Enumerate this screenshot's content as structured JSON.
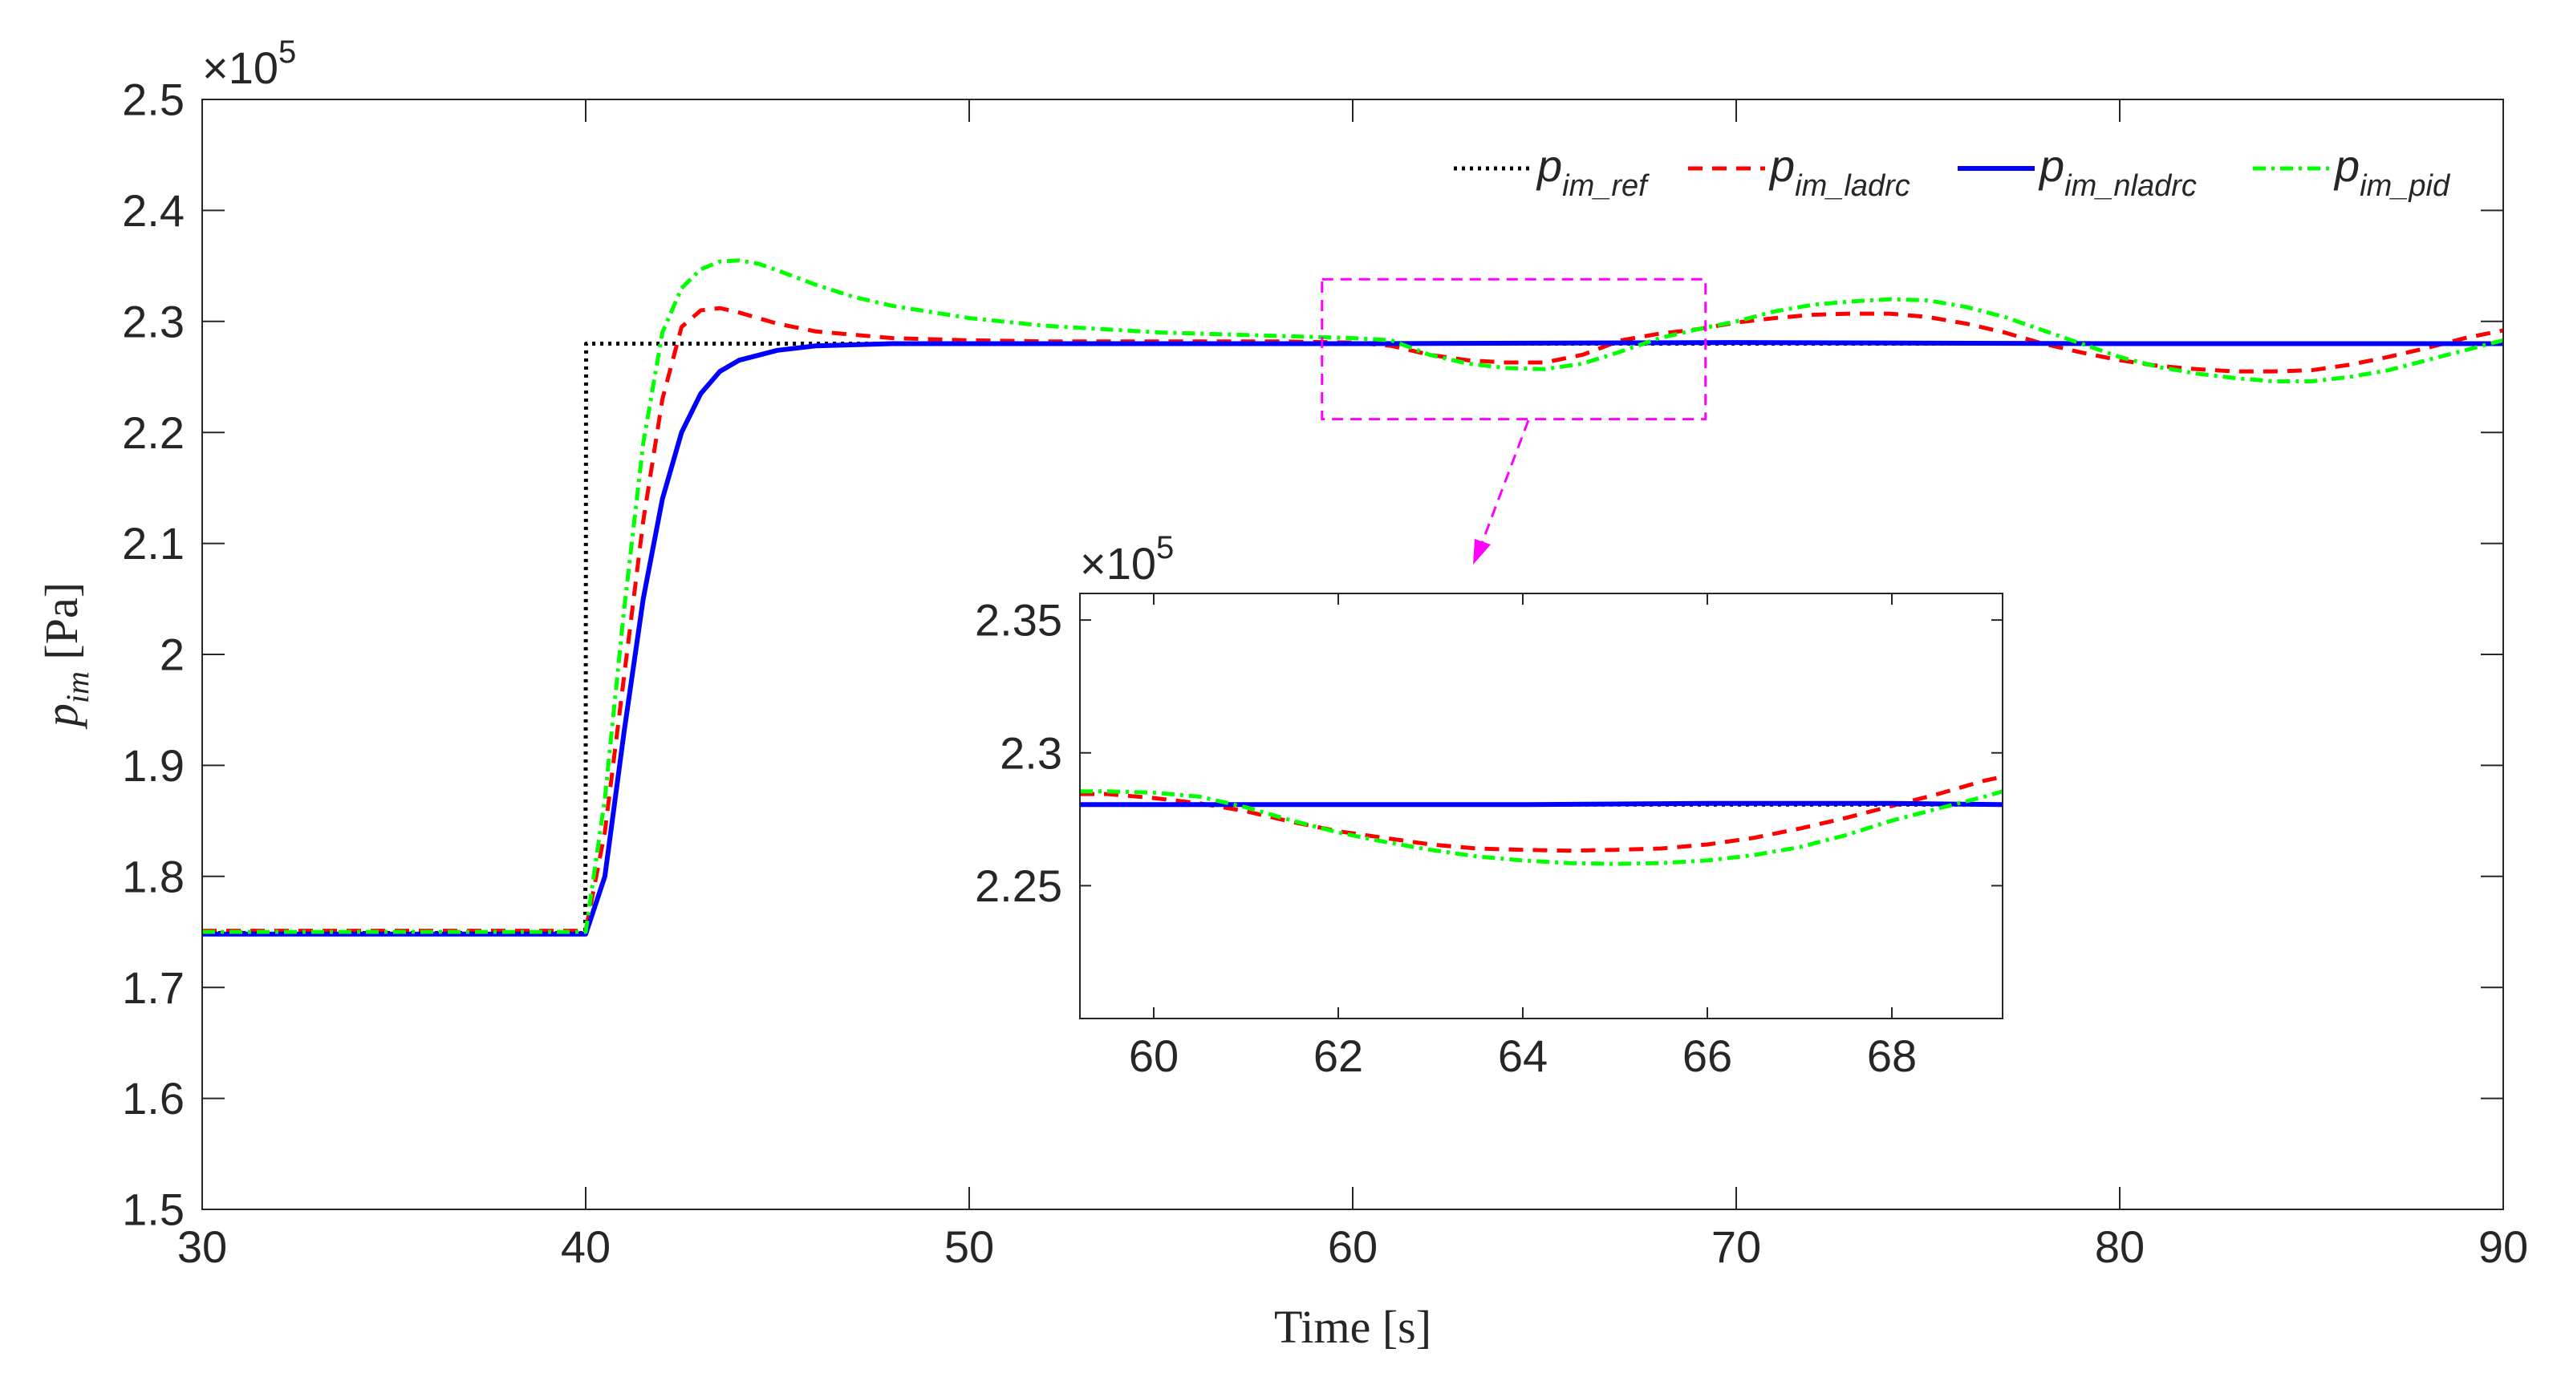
{
  "chart_data": [
    {
      "type": "line",
      "name": "main",
      "xlabel": "Time [s]",
      "ylabel_main": "p",
      "ylabel_sub": "im",
      "ylabel_unit": " [Pa]",
      "exponent_prefix": "×10",
      "exponent_power": "5",
      "xlim": [
        30,
        90
      ],
      "ylim": [
        1.5,
        2.5
      ],
      "xticks": [
        30,
        40,
        50,
        60,
        70,
        80,
        90
      ],
      "xtick_labels": [
        "30",
        "40",
        "50",
        "60",
        "70",
        "80",
        "90"
      ],
      "yticks": [
        1.5,
        1.6,
        1.7,
        1.8,
        1.9,
        2.0,
        2.1,
        2.2,
        2.3,
        2.4,
        2.5
      ],
      "ytick_labels": [
        "1.5",
        "1.6",
        "1.7",
        "1.8",
        "1.9",
        "2",
        "2.1",
        "2.2",
        "2.3",
        "2.4",
        "2.5"
      ],
      "legend_position": "top-right",
      "zoom_box": {
        "x": [
          59.2,
          69.2
        ],
        "y": [
          2.212,
          2.338
        ]
      },
      "series": [
        {
          "name": "p_im_ref",
          "label_main": "p",
          "label_sub": "im_ref",
          "color": "#000000",
          "dash": "dotted",
          "x": [
            30,
            39.99,
            40.0,
            40.01,
            90
          ],
          "y": [
            1.749,
            1.749,
            1.9,
            2.28,
            2.28
          ]
        },
        {
          "name": "p_im_ladrc",
          "label_main": "p",
          "label_sub": "im_ladrc",
          "color": "#ff0000",
          "dash": "dashed",
          "x": [
            30,
            40,
            40.5,
            41,
            41.5,
            42,
            42.5,
            43,
            43.5,
            44,
            45,
            46,
            48,
            50,
            52,
            55,
            58,
            60,
            61,
            62,
            63,
            64,
            65,
            66,
            67,
            68,
            69,
            70,
            71,
            72,
            73,
            74,
            75,
            76,
            77,
            78,
            79,
            80,
            81,
            82,
            83,
            84,
            85,
            86,
            87,
            88,
            89,
            90
          ],
          "y": [
            1.751,
            1.751,
            1.84,
            1.98,
            2.12,
            2.23,
            2.295,
            2.31,
            2.312,
            2.308,
            2.298,
            2.291,
            2.285,
            2.283,
            2.282,
            2.282,
            2.282,
            2.281,
            2.278,
            2.27,
            2.265,
            2.263,
            2.263,
            2.27,
            2.283,
            2.289,
            2.293,
            2.299,
            2.303,
            2.306,
            2.307,
            2.307,
            2.304,
            2.298,
            2.29,
            2.28,
            2.272,
            2.265,
            2.26,
            2.257,
            2.255,
            2.255,
            2.256,
            2.261,
            2.268,
            2.276,
            2.285,
            2.292
          ]
        },
        {
          "name": "p_im_nladrc",
          "label_main": "p",
          "label_sub": "im_nladrc",
          "color": "#0000ff",
          "dash": "solid",
          "x": [
            30,
            40,
            40.5,
            41,
            41.5,
            42,
            42.5,
            43,
            43.5,
            44,
            45,
            46,
            47,
            48,
            50,
            60,
            70,
            80,
            90
          ],
          "y": [
            1.748,
            1.748,
            1.8,
            1.93,
            2.05,
            2.14,
            2.2,
            2.235,
            2.255,
            2.265,
            2.274,
            2.278,
            2.279,
            2.28,
            2.28,
            2.28,
            2.281,
            2.28,
            2.28
          ]
        },
        {
          "name": "p_im_pid",
          "label_main": "p",
          "label_sub": "im_pid",
          "color": "#00ff00",
          "dash": "dashdot",
          "x": [
            30,
            40,
            40.5,
            41,
            41.5,
            42,
            42.5,
            43,
            43.5,
            44,
            44.5,
            45,
            46,
            47,
            48,
            50,
            52,
            55,
            58,
            60,
            61,
            62,
            63,
            64,
            65,
            66,
            67,
            68,
            69,
            70,
            71,
            72,
            73,
            74,
            75,
            76,
            77,
            78,
            79,
            80,
            81,
            82,
            83,
            84,
            85,
            86,
            87,
            88,
            89,
            90
          ],
          "y": [
            1.75,
            1.75,
            1.87,
            2.04,
            2.19,
            2.29,
            2.33,
            2.347,
            2.354,
            2.355,
            2.352,
            2.346,
            2.333,
            2.322,
            2.314,
            2.303,
            2.296,
            2.29,
            2.287,
            2.285,
            2.283,
            2.27,
            2.262,
            2.258,
            2.257,
            2.262,
            2.273,
            2.285,
            2.293,
            2.3,
            2.309,
            2.315,
            2.318,
            2.32,
            2.319,
            2.313,
            2.304,
            2.292,
            2.28,
            2.268,
            2.259,
            2.253,
            2.249,
            2.246,
            2.246,
            2.25,
            2.256,
            2.265,
            2.274,
            2.283
          ]
        }
      ]
    },
    {
      "type": "line",
      "name": "inset",
      "exponent_prefix": "×10",
      "exponent_power": "5",
      "xlim": [
        59.2,
        69.2
      ],
      "ylim": [
        2.2,
        2.36
      ],
      "xticks": [
        60,
        62,
        64,
        66,
        68
      ],
      "xtick_labels": [
        "60",
        "62",
        "64",
        "66",
        "68"
      ],
      "yticks": [
        2.25,
        2.3,
        2.35
      ],
      "ytick_labels": [
        "2.25",
        "2.3",
        "2.35"
      ],
      "series": [
        {
          "name": "p_im_ref",
          "color": "#000000",
          "dash": "dotted",
          "x": [
            59.2,
            69.2
          ],
          "y": [
            2.2805,
            2.2805
          ]
        },
        {
          "name": "p_im_ladrc",
          "color": "#ff0000",
          "dash": "dashed",
          "x": [
            59.2,
            59.5,
            60,
            60.5,
            61,
            61.5,
            62,
            62.5,
            63,
            63.5,
            64,
            64.5,
            65,
            65.5,
            66,
            66.5,
            67,
            67.5,
            68,
            68.5,
            69,
            69.2
          ],
          "y": [
            2.2845,
            2.2845,
            2.283,
            2.281,
            2.278,
            2.274,
            2.2705,
            2.268,
            2.2655,
            2.264,
            2.2635,
            2.2632,
            2.2635,
            2.264,
            2.2655,
            2.268,
            2.2715,
            2.2755,
            2.28,
            2.2845,
            2.2895,
            2.291
          ]
        },
        {
          "name": "p_im_nladrc",
          "color": "#0000ff",
          "dash": "solid",
          "x": [
            59.2,
            62,
            64,
            66,
            68,
            69.2
          ],
          "y": [
            2.2805,
            2.2805,
            2.2805,
            2.281,
            2.281,
            2.2805
          ]
        },
        {
          "name": "p_im_pid",
          "color": "#00ff00",
          "dash": "dashdot",
          "x": [
            59.2,
            59.5,
            60,
            60.5,
            61,
            61.5,
            62,
            62.5,
            63,
            63.5,
            64,
            64.5,
            65,
            65.5,
            66,
            66.5,
            67,
            67.5,
            68,
            68.5,
            69,
            69.2
          ],
          "y": [
            2.2855,
            2.2855,
            2.285,
            2.2835,
            2.2795,
            2.2745,
            2.27,
            2.2665,
            2.2635,
            2.261,
            2.2595,
            2.2585,
            2.2582,
            2.2585,
            2.2595,
            2.2615,
            2.2645,
            2.269,
            2.2745,
            2.279,
            2.2835,
            2.2855
          ]
        }
      ]
    }
  ]
}
